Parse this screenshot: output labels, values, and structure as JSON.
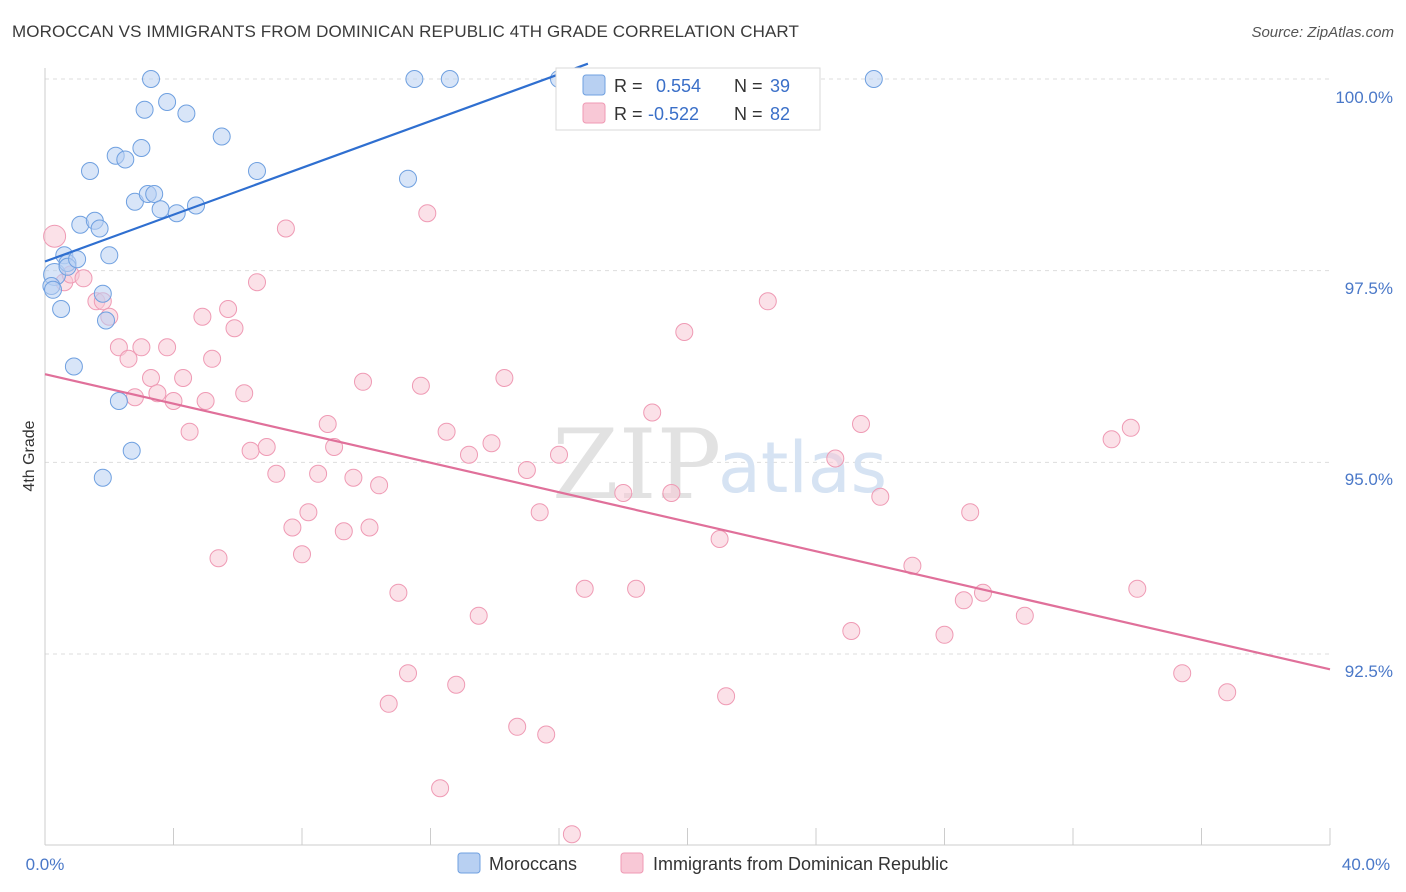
{
  "header": {
    "title": "MOROCCAN VS IMMIGRANTS FROM DOMINICAN REPUBLIC 4TH GRADE CORRELATION CHART",
    "source": "Source: ZipAtlas.com"
  },
  "watermark": {
    "zip": "ZIP",
    "atlas": "atlas"
  },
  "stats": {
    "r_label": "R =",
    "n_label": "N =",
    "rows": [
      {
        "series": "Moroccans",
        "r": "0.554",
        "n": "39",
        "color": "#6fa0e0"
      },
      {
        "series": "Immigrants from Dominican Republic",
        "r": "-0.522",
        "n": "82",
        "color": "#f0a0b8"
      }
    ]
  },
  "chart_data": {
    "type": "scatter",
    "title": "MOROCCAN VS IMMIGRANTS FROM DOMINICAN REPUBLIC 4TH GRADE CORRELATION CHART",
    "xlabel": "",
    "ylabel": "4th Grade",
    "xlim": [
      0,
      40
    ],
    "ylim": [
      90.0,
      100.2
    ],
    "x_tick_labels": [
      {
        "value": 0,
        "label": "0.0%"
      },
      {
        "value": 40,
        "label": "40.0%"
      }
    ],
    "y_tick_labels": [
      {
        "value": 100.0,
        "label": "100.0%"
      },
      {
        "value": 97.5,
        "label": "97.5%"
      },
      {
        "value": 95.0,
        "label": "95.0%"
      },
      {
        "value": 92.5,
        "label": "92.5%"
      }
    ],
    "grid": true,
    "legend_position": "bottom-center",
    "series": [
      {
        "name": "Moroccans",
        "color": "#6fa0e0",
        "fill": "#b8d0f2",
        "trend": {
          "x": [
            0.0,
            16.9
          ],
          "y": [
            97.62,
            100.2
          ]
        },
        "points": [
          [
            0.3,
            97.45
          ],
          [
            0.2,
            97.3
          ],
          [
            0.25,
            97.25
          ],
          [
            0.5,
            97.0
          ],
          [
            0.6,
            97.7
          ],
          [
            0.7,
            97.6
          ],
          [
            0.7,
            97.55
          ],
          [
            0.9,
            96.25
          ],
          [
            1.0,
            97.65
          ],
          [
            1.1,
            98.1
          ],
          [
            1.4,
            98.8
          ],
          [
            1.55,
            98.15
          ],
          [
            1.7,
            98.05
          ],
          [
            1.8,
            97.2
          ],
          [
            1.9,
            96.85
          ],
          [
            2.0,
            97.7
          ],
          [
            2.2,
            99.0
          ],
          [
            2.3,
            95.8
          ],
          [
            2.5,
            98.95
          ],
          [
            2.8,
            98.4
          ],
          [
            2.7,
            95.15
          ],
          [
            3.0,
            99.1
          ],
          [
            3.1,
            99.6
          ],
          [
            3.2,
            98.5
          ],
          [
            3.3,
            100.0
          ],
          [
            3.4,
            98.5
          ],
          [
            3.6,
            98.3
          ],
          [
            3.8,
            99.7
          ],
          [
            4.1,
            98.25
          ],
          [
            4.4,
            99.55
          ],
          [
            4.7,
            98.35
          ],
          [
            5.5,
            99.25
          ],
          [
            6.6,
            98.8
          ],
          [
            1.8,
            94.8
          ],
          [
            11.3,
            98.7
          ],
          [
            11.5,
            100.0
          ],
          [
            12.6,
            100.0
          ],
          [
            16.0,
            100.0
          ],
          [
            25.8,
            100.0
          ]
        ]
      },
      {
        "name": "Immigrants from Dominican Republic",
        "color": "#ef9ab4",
        "fill": "#f8c8d6",
        "trend": {
          "x": [
            0.0,
            40.0
          ],
          "y": [
            96.15,
            92.3
          ]
        },
        "points": [
          [
            0.3,
            97.95
          ],
          [
            0.6,
            97.35
          ],
          [
            0.8,
            97.45
          ],
          [
            1.2,
            97.4
          ],
          [
            1.6,
            97.1
          ],
          [
            1.8,
            97.1
          ],
          [
            2.0,
            96.9
          ],
          [
            2.3,
            96.5
          ],
          [
            2.6,
            96.35
          ],
          [
            2.8,
            95.85
          ],
          [
            3.0,
            96.5
          ],
          [
            3.3,
            96.1
          ],
          [
            3.5,
            95.9
          ],
          [
            3.8,
            96.5
          ],
          [
            4.0,
            95.8
          ],
          [
            4.3,
            96.1
          ],
          [
            4.5,
            95.4
          ],
          [
            4.9,
            96.9
          ],
          [
            5.0,
            95.8
          ],
          [
            5.2,
            96.35
          ],
          [
            5.4,
            93.75
          ],
          [
            5.7,
            97.0
          ],
          [
            5.9,
            96.75
          ],
          [
            6.2,
            95.9
          ],
          [
            6.4,
            95.15
          ],
          [
            6.6,
            97.35
          ],
          [
            6.9,
            95.2
          ],
          [
            7.2,
            94.85
          ],
          [
            7.5,
            98.05
          ],
          [
            7.7,
            94.15
          ],
          [
            8.0,
            93.8
          ],
          [
            8.2,
            94.35
          ],
          [
            8.5,
            94.85
          ],
          [
            8.8,
            95.5
          ],
          [
            9.0,
            95.2
          ],
          [
            9.3,
            94.1
          ],
          [
            9.6,
            94.8
          ],
          [
            9.9,
            96.05
          ],
          [
            10.1,
            94.15
          ],
          [
            10.4,
            94.7
          ],
          [
            10.7,
            91.85
          ],
          [
            11.0,
            93.3
          ],
          [
            11.3,
            92.25
          ],
          [
            11.7,
            96.0
          ],
          [
            11.9,
            98.25
          ],
          [
            12.3,
            90.75
          ],
          [
            12.5,
            95.4
          ],
          [
            12.8,
            92.1
          ],
          [
            13.2,
            95.1
          ],
          [
            13.5,
            93.0
          ],
          [
            13.9,
            95.25
          ],
          [
            14.3,
            96.1
          ],
          [
            14.7,
            91.55
          ],
          [
            15.0,
            94.9
          ],
          [
            15.4,
            94.35
          ],
          [
            15.6,
            91.45
          ],
          [
            16.0,
            95.1
          ],
          [
            16.4,
            90.15
          ],
          [
            16.8,
            93.35
          ],
          [
            18.0,
            94.6
          ],
          [
            18.4,
            93.35
          ],
          [
            18.9,
            95.65
          ],
          [
            19.5,
            94.6
          ],
          [
            19.9,
            96.7
          ],
          [
            21.0,
            94.0
          ],
          [
            21.2,
            91.95
          ],
          [
            22.5,
            97.1
          ],
          [
            24.6,
            95.05
          ],
          [
            25.1,
            92.8
          ],
          [
            25.4,
            95.5
          ],
          [
            26.0,
            94.55
          ],
          [
            27.0,
            93.65
          ],
          [
            28.0,
            92.75
          ],
          [
            28.6,
            93.2
          ],
          [
            28.8,
            94.35
          ],
          [
            29.2,
            93.3
          ],
          [
            30.5,
            93.0
          ],
          [
            33.2,
            95.3
          ],
          [
            33.8,
            95.45
          ],
          [
            34.0,
            93.35
          ],
          [
            35.4,
            92.25
          ],
          [
            36.8,
            92.0
          ]
        ]
      }
    ]
  }
}
